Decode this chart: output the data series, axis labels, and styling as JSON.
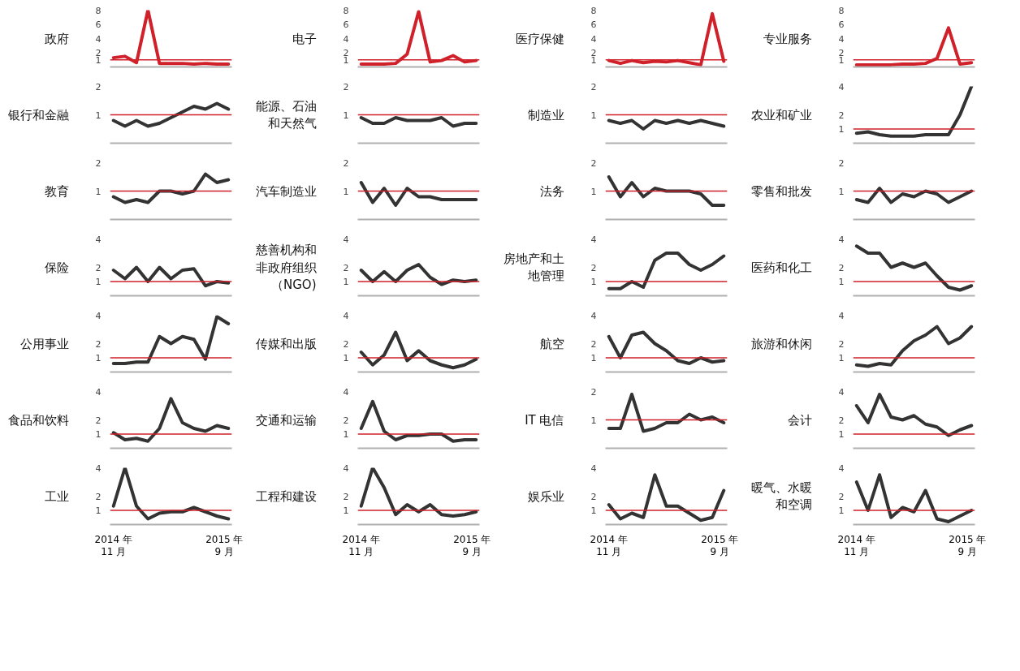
{
  "chart_data": [
    {
      "type": "line",
      "title": "政府",
      "categories": [
        "2014 年\n11 月",
        null,
        null,
        null,
        null,
        null,
        null,
        null,
        null,
        null,
        "2015 年\n9 月"
      ],
      "series": [
        {
          "color": "#d0202a",
          "values": [
            1.3,
            1.5,
            0.6,
            8,
            0.5,
            0.5,
            0.5,
            0.4,
            0.5,
            0.4,
            0.4
          ]
        }
      ],
      "ylim": [
        0,
        8
      ],
      "yticks": [
        1,
        2,
        4,
        6,
        8
      ],
      "ref_lines": [
        {
          "axis": "y",
          "value": 1,
          "color": "#d0202a"
        }
      ],
      "tick_labels": "y"
    },
    {
      "type": "line",
      "title": "电子",
      "categories": [
        "2014 年\n11 月",
        null,
        null,
        null,
        null,
        null,
        null,
        null,
        null,
        null,
        "2015 年\n9 月"
      ],
      "series": [
        {
          "color": "#d0202a",
          "values": [
            0.4,
            0.4,
            0.4,
            0.5,
            1.8,
            7.8,
            0.7,
            0.9,
            1.6,
            0.7,
            0.9
          ]
        }
      ],
      "ylim": [
        0,
        8
      ],
      "yticks": [
        1,
        2,
        4,
        6,
        8
      ],
      "ref_lines": [
        {
          "axis": "y",
          "value": 1,
          "color": "#d0202a"
        }
      ],
      "tick_labels": "y"
    },
    {
      "type": "line",
      "title": "医疗保健",
      "categories": [
        "2014 年\n11 月",
        null,
        null,
        null,
        null,
        null,
        null,
        null,
        null,
        null,
        "2015 年\n9 月"
      ],
      "series": [
        {
          "color": "#d0202a",
          "values": [
            0.9,
            0.5,
            0.9,
            0.6,
            0.8,
            0.7,
            0.9,
            0.6,
            0.3,
            7.5,
            0.8
          ]
        }
      ],
      "ylim": [
        0,
        8
      ],
      "yticks": [
        1,
        2,
        4,
        6,
        8
      ],
      "ref_lines": [
        {
          "axis": "y",
          "value": 1,
          "color": "#d0202a"
        }
      ],
      "tick_labels": "y"
    },
    {
      "type": "line",
      "title": "专业服务",
      "categories": [
        "2014 年\n11 月",
        null,
        null,
        null,
        null,
        null,
        null,
        null,
        null,
        null,
        "2015 年\n9 月"
      ],
      "series": [
        {
          "color": "#d0202a",
          "values": [
            0.3,
            0.3,
            0.3,
            0.3,
            0.4,
            0.4,
            0.5,
            1.2,
            5.5,
            0.4,
            0.6
          ]
        }
      ],
      "ylim": [
        0,
        8
      ],
      "yticks": [
        1,
        2,
        4,
        6,
        8
      ],
      "ref_lines": [
        {
          "axis": "y",
          "value": 1,
          "color": "#d0202a"
        }
      ],
      "tick_labels": "y"
    },
    {
      "type": "line",
      "title": "银行和金融",
      "categories": [
        "2014 年\n11 月",
        null,
        null,
        null,
        null,
        null,
        null,
        null,
        null,
        null,
        "2015 年\n9 月"
      ],
      "series": [
        {
          "color": "#333333",
          "values": [
            0.8,
            0.6,
            0.8,
            0.6,
            0.7,
            0.9,
            1.1,
            1.3,
            1.2,
            1.4,
            1.2
          ]
        }
      ],
      "ylim": [
        0,
        2
      ],
      "yticks": [
        1,
        2
      ],
      "ref_lines": [
        {
          "axis": "y",
          "value": 1,
          "color": "#d0202a"
        }
      ],
      "tick_labels": "y"
    },
    {
      "type": "line",
      "title": "能源、石油和天然气",
      "categories": [
        "2014 年\n11 月",
        null,
        null,
        null,
        null,
        null,
        null,
        null,
        null,
        null,
        "2015 年\n9 月"
      ],
      "series": [
        {
          "color": "#333333",
          "values": [
            0.9,
            0.7,
            0.7,
            0.9,
            0.8,
            0.8,
            0.8,
            0.9,
            0.6,
            0.7,
            0.7
          ]
        }
      ],
      "ylim": [
        0,
        2
      ],
      "yticks": [
        1,
        2
      ],
      "ref_lines": [
        {
          "axis": "y",
          "value": 1,
          "color": "#d0202a"
        }
      ],
      "tick_labels": "y"
    },
    {
      "type": "line",
      "title": "制造业",
      "categories": [
        "2014 年\n11 月",
        null,
        null,
        null,
        null,
        null,
        null,
        null,
        null,
        null,
        "2015 年\n9 月"
      ],
      "series": [
        {
          "color": "#333333",
          "values": [
            0.8,
            0.7,
            0.8,
            0.5,
            0.8,
            0.7,
            0.8,
            0.7,
            0.8,
            0.7,
            0.6
          ]
        }
      ],
      "ylim": [
        0,
        2
      ],
      "yticks": [
        1,
        2
      ],
      "ref_lines": [
        {
          "axis": "y",
          "value": 1,
          "color": "#d0202a"
        }
      ],
      "tick_labels": "y"
    },
    {
      "type": "line",
      "title": "农业和矿业",
      "categories": [
        "2014 年\n11 月",
        null,
        null,
        null,
        null,
        null,
        null,
        null,
        null,
        null,
        "2015 年\n9 月"
      ],
      "series": [
        {
          "color": "#333333",
          "values": [
            0.7,
            0.8,
            0.6,
            0.5,
            0.5,
            0.5,
            0.6,
            0.6,
            0.6,
            2.0,
            4
          ]
        }
      ],
      "ylim": [
        0,
        4
      ],
      "yticks": [
        1,
        2,
        4
      ],
      "ref_lines": [
        {
          "axis": "y",
          "value": 1,
          "color": "#d0202a"
        }
      ],
      "tick_labels": "y"
    },
    {
      "type": "line",
      "title": "教育",
      "categories": [
        "2014 年\n11 月",
        null,
        null,
        null,
        null,
        null,
        null,
        null,
        null,
        null,
        "2015 年\n9 月"
      ],
      "series": [
        {
          "color": "#333333",
          "values": [
            0.8,
            0.6,
            0.7,
            0.6,
            1.0,
            1.0,
            0.9,
            1.0,
            1.6,
            1.3,
            1.4
          ]
        }
      ],
      "ylim": [
        0,
        2
      ],
      "yticks": [
        1,
        2
      ],
      "ref_lines": [
        {
          "axis": "y",
          "value": 1,
          "color": "#d0202a"
        }
      ],
      "tick_labels": "y"
    },
    {
      "type": "line",
      "title": "汽车制造业",
      "categories": [
        "2014 年\n11 月",
        null,
        null,
        null,
        null,
        null,
        null,
        null,
        null,
        null,
        "2015 年\n9 月"
      ],
      "series": [
        {
          "color": "#333333",
          "values": [
            1.3,
            0.6,
            1.1,
            0.5,
            1.1,
            0.8,
            0.8,
            0.7,
            0.7,
            0.7,
            0.7
          ]
        }
      ],
      "ylim": [
        0,
        2
      ],
      "yticks": [
        1,
        2
      ],
      "ref_lines": [
        {
          "axis": "y",
          "value": 1,
          "color": "#d0202a"
        }
      ],
      "tick_labels": "y"
    },
    {
      "type": "line",
      "title": "法务",
      "categories": [
        "2014 年\n11 月",
        null,
        null,
        null,
        null,
        null,
        null,
        null,
        null,
        null,
        "2015 年\n9 月"
      ],
      "series": [
        {
          "color": "#333333",
          "values": [
            1.5,
            0.8,
            1.3,
            0.8,
            1.1,
            1.0,
            1.0,
            1.0,
            0.9,
            0.5,
            0.5
          ]
        }
      ],
      "ylim": [
        0,
        2
      ],
      "yticks": [
        1,
        2
      ],
      "ref_lines": [
        {
          "axis": "y",
          "value": 1,
          "color": "#d0202a"
        }
      ],
      "tick_labels": "y"
    },
    {
      "type": "line",
      "title": "零售和批发",
      "categories": [
        "2014 年\n11 月",
        null,
        null,
        null,
        null,
        null,
        null,
        null,
        null,
        null,
        "2015 年\n9 月"
      ],
      "series": [
        {
          "color": "#333333",
          "values": [
            0.7,
            0.6,
            1.1,
            0.6,
            0.9,
            0.8,
            1.0,
            0.9,
            0.6,
            0.8,
            1.0
          ]
        }
      ],
      "ylim": [
        0,
        2
      ],
      "yticks": [
        1,
        2
      ],
      "ref_lines": [
        {
          "axis": "y",
          "value": 1,
          "color": "#d0202a"
        }
      ],
      "tick_labels": "y"
    },
    {
      "type": "line",
      "title": "保险",
      "categories": [
        "2014 年\n11 月",
        null,
        null,
        null,
        null,
        null,
        null,
        null,
        null,
        null,
        "2015 年\n9 月"
      ],
      "series": [
        {
          "color": "#333333",
          "values": [
            1.8,
            1.2,
            2.0,
            1.0,
            2.0,
            1.2,
            1.8,
            1.9,
            0.7,
            1.0,
            0.9
          ]
        }
      ],
      "ylim": [
        0,
        4
      ],
      "yticks": [
        1,
        2,
        4
      ],
      "ref_lines": [
        {
          "axis": "y",
          "value": 1,
          "color": "#d0202a"
        }
      ],
      "tick_labels": "y"
    },
    {
      "type": "line",
      "title": "慈善机构和非政府组织（NGO)",
      "categories": [
        "2014 年\n11 月",
        null,
        null,
        null,
        null,
        null,
        null,
        null,
        null,
        null,
        "2015 年\n9 月"
      ],
      "series": [
        {
          "color": "#333333",
          "values": [
            1.8,
            1.0,
            1.7,
            1.0,
            1.8,
            2.2,
            1.3,
            0.8,
            1.1,
            1.0,
            1.1
          ]
        }
      ],
      "ylim": [
        0,
        4
      ],
      "yticks": [
        1,
        2,
        4
      ],
      "ref_lines": [
        {
          "axis": "y",
          "value": 1,
          "color": "#d0202a"
        }
      ],
      "tick_labels": "y"
    },
    {
      "type": "line",
      "title": "房地产和土地管理",
      "categories": [
        "2014 年\n11 月",
        null,
        null,
        null,
        null,
        null,
        null,
        null,
        null,
        null,
        "2015 年\n9 月"
      ],
      "series": [
        {
          "color": "#333333",
          "values": [
            0.5,
            0.5,
            1.0,
            0.6,
            2.5,
            3.0,
            3.0,
            2.2,
            1.8,
            2.2,
            2.8
          ]
        }
      ],
      "ylim": [
        0,
        4
      ],
      "yticks": [
        1,
        2,
        4
      ],
      "ref_lines": [
        {
          "axis": "y",
          "value": 1,
          "color": "#d0202a"
        }
      ],
      "tick_labels": "y"
    },
    {
      "type": "line",
      "title": "医药和化工",
      "categories": [
        "2014 年\n11 月",
        null,
        null,
        null,
        null,
        null,
        null,
        null,
        null,
        null,
        "2015 年\n9 月"
      ],
      "series": [
        {
          "color": "#333333",
          "values": [
            3.5,
            3.0,
            3.0,
            2.0,
            2.3,
            2.0,
            2.3,
            1.4,
            0.6,
            0.4,
            0.7
          ]
        }
      ],
      "ylim": [
        0,
        4
      ],
      "yticks": [
        1,
        2,
        4
      ],
      "ref_lines": [
        {
          "axis": "y",
          "value": 1,
          "color": "#d0202a"
        }
      ],
      "tick_labels": "y"
    },
    {
      "type": "line",
      "title": "公用事业",
      "categories": [
        "2014 年\n11 月",
        null,
        null,
        null,
        null,
        null,
        null,
        null,
        null,
        null,
        "2015 年\n9 月"
      ],
      "series": [
        {
          "color": "#333333",
          "values": [
            0.6,
            0.6,
            0.7,
            0.7,
            2.5,
            2.0,
            2.5,
            2.3,
            0.9,
            3.9,
            3.4
          ]
        }
      ],
      "ylim": [
        0,
        4
      ],
      "yticks": [
        1,
        2,
        4
      ],
      "ref_lines": [
        {
          "axis": "y",
          "value": 1,
          "color": "#d0202a"
        }
      ],
      "tick_labels": "y"
    },
    {
      "type": "line",
      "title": "传媒和出版",
      "categories": [
        "2014 年\n11 月",
        null,
        null,
        null,
        null,
        null,
        null,
        null,
        null,
        null,
        "2015 年\n9 月"
      ],
      "series": [
        {
          "color": "#333333",
          "values": [
            1.4,
            0.5,
            1.2,
            2.8,
            0.8,
            1.5,
            0.8,
            0.5,
            0.3,
            0.5,
            0.9
          ]
        }
      ],
      "ylim": [
        0,
        4
      ],
      "yticks": [
        1,
        2,
        4
      ],
      "ref_lines": [
        {
          "axis": "y",
          "value": 1,
          "color": "#d0202a"
        }
      ],
      "tick_labels": "y"
    },
    {
      "type": "line",
      "title": "航空",
      "categories": [
        "2014 年\n11 月",
        null,
        null,
        null,
        null,
        null,
        null,
        null,
        null,
        null,
        "2015 年\n9 月"
      ],
      "series": [
        {
          "color": "#333333",
          "values": [
            2.5,
            1.0,
            2.6,
            2.8,
            2.0,
            1.5,
            0.8,
            0.6,
            1.0,
            0.7,
            0.8
          ]
        }
      ],
      "ylim": [
        0,
        4
      ],
      "yticks": [
        1,
        2,
        4
      ],
      "ref_lines": [
        {
          "axis": "y",
          "value": 1,
          "color": "#d0202a"
        }
      ],
      "tick_labels": "y"
    },
    {
      "type": "line",
      "title": "旅游和休闲",
      "categories": [
        "2014 年\n11 月",
        null,
        null,
        null,
        null,
        null,
        null,
        null,
        null,
        null,
        "2015 年\n9 月"
      ],
      "series": [
        {
          "color": "#333333",
          "values": [
            0.5,
            0.4,
            0.6,
            0.5,
            1.5,
            2.2,
            2.6,
            3.2,
            2.0,
            2.4,
            3.2
          ]
        }
      ],
      "ylim": [
        0,
        4
      ],
      "yticks": [
        1,
        2,
        4
      ],
      "ref_lines": [
        {
          "axis": "y",
          "value": 1,
          "color": "#d0202a"
        }
      ],
      "tick_labels": "y"
    },
    {
      "type": "line",
      "title": "食品和饮料",
      "categories": [
        "2014 年\n11 月",
        null,
        null,
        null,
        null,
        null,
        null,
        null,
        null,
        null,
        "2015 年\n9 月"
      ],
      "series": [
        {
          "color": "#333333",
          "values": [
            1.1,
            0.6,
            0.7,
            0.5,
            1.4,
            3.5,
            1.8,
            1.4,
            1.2,
            1.6,
            1.4
          ]
        }
      ],
      "ylim": [
        0,
        4
      ],
      "yticks": [
        1,
        2,
        4
      ],
      "ref_lines": [
        {
          "axis": "y",
          "value": 1,
          "color": "#d0202a"
        }
      ],
      "tick_labels": "y"
    },
    {
      "type": "line",
      "title": "交通和运输",
      "categories": [
        "2014 年\n11 月",
        null,
        null,
        null,
        null,
        null,
        null,
        null,
        null,
        null,
        "2015 年\n9 月"
      ],
      "series": [
        {
          "color": "#333333",
          "values": [
            1.4,
            3.3,
            1.2,
            0.6,
            0.9,
            0.9,
            1.0,
            1.0,
            0.5,
            0.6,
            0.6
          ]
        }
      ],
      "ylim": [
        0,
        4
      ],
      "yticks": [
        1,
        2,
        4
      ],
      "ref_lines": [
        {
          "axis": "y",
          "value": 1,
          "color": "#d0202a"
        }
      ],
      "tick_labels": "y"
    },
    {
      "type": "line",
      "title": "IT 电信",
      "categories": [
        "2014 年\n11 月",
        null,
        null,
        null,
        null,
        null,
        null,
        null,
        null,
        null,
        "2015 年\n9 月"
      ],
      "series": [
        {
          "color": "#333333",
          "values": [
            0.7,
            0.7,
            1.9,
            0.6,
            0.7,
            0.9,
            0.9,
            1.2,
            1.0,
            1.1,
            0.9
          ]
        }
      ],
      "ylim": [
        0,
        2
      ],
      "yticks": [
        1,
        2
      ],
      "ref_lines": [
        {
          "axis": "y",
          "value": 1,
          "color": "#d0202a"
        }
      ],
      "tick_labels": "y"
    },
    {
      "type": "line",
      "title": "会计",
      "categories": [
        "2014 年\n11 月",
        null,
        null,
        null,
        null,
        null,
        null,
        null,
        null,
        null,
        "2015 年\n9 月"
      ],
      "series": [
        {
          "color": "#333333",
          "values": [
            3.0,
            1.8,
            3.8,
            2.2,
            2.0,
            2.3,
            1.7,
            1.5,
            0.9,
            1.3,
            1.6
          ]
        }
      ],
      "ylim": [
        0,
        4
      ],
      "yticks": [
        1,
        2,
        4
      ],
      "ref_lines": [
        {
          "axis": "y",
          "value": 1,
          "color": "#d0202a"
        }
      ],
      "tick_labels": "y"
    },
    {
      "type": "line",
      "title": "工业",
      "categories": [
        "2014 年\n11 月",
        null,
        null,
        null,
        null,
        null,
        null,
        null,
        null,
        null,
        "2015 年\n9 月"
      ],
      "series": [
        {
          "color": "#333333",
          "values": [
            1.3,
            4,
            1.3,
            0.4,
            0.8,
            0.9,
            0.9,
            1.2,
            0.9,
            0.6,
            0.4
          ]
        }
      ],
      "ylim": [
        0,
        4
      ],
      "yticks": [
        1,
        2,
        4
      ],
      "ref_lines": [
        {
          "axis": "y",
          "value": 1,
          "color": "#d0202a"
        }
      ]
    },
    {
      "type": "line",
      "title": "工程和建设",
      "categories": [
        "2014 年\n11 月",
        null,
        null,
        null,
        null,
        null,
        null,
        null,
        null,
        null,
        "2015 年\n9 月"
      ],
      "series": [
        {
          "color": "#333333",
          "values": [
            1.3,
            4,
            2.6,
            0.7,
            1.4,
            0.9,
            1.4,
            0.7,
            0.6,
            0.7,
            0.9
          ]
        }
      ],
      "ylim": [
        0,
        4
      ],
      "yticks": [
        1,
        2,
        4
      ],
      "ref_lines": [
        {
          "axis": "y",
          "value": 1,
          "color": "#d0202a"
        }
      ]
    },
    {
      "type": "line",
      "title": "娱乐业",
      "categories": [
        "2014 年\n11 月",
        null,
        null,
        null,
        null,
        null,
        null,
        null,
        null,
        null,
        "2015 年\n9 月"
      ],
      "series": [
        {
          "color": "#333333",
          "values": [
            1.4,
            0.4,
            0.8,
            0.5,
            3.5,
            1.3,
            1.3,
            0.8,
            0.3,
            0.5,
            2.4
          ]
        }
      ],
      "ylim": [
        0,
        4
      ],
      "yticks": [
        1,
        2,
        4
      ],
      "ref_lines": [
        {
          "axis": "y",
          "value": 1,
          "color": "#d0202a"
        }
      ]
    },
    {
      "type": "line",
      "title": "暖气、水暖和空调",
      "categories": [
        "2014 年\n11 月",
        null,
        null,
        null,
        null,
        null,
        null,
        null,
        null,
        null,
        "2015 年\n9 月"
      ],
      "series": [
        {
          "color": "#333333",
          "values": [
            3.0,
            1.0,
            3.5,
            0.5,
            1.2,
            0.9,
            2.4,
            0.4,
            0.2,
            0.6,
            1.0
          ]
        }
      ],
      "ylim": [
        0,
        4
      ],
      "yticks": [
        1,
        2,
        4
      ],
      "ref_lines": [
        {
          "axis": "y",
          "value": 1,
          "color": "#d0202a"
        }
      ]
    }
  ]
}
